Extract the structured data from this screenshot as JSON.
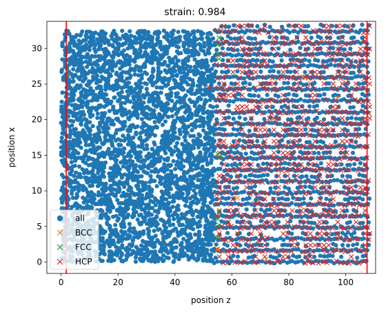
{
  "chart_data": {
    "type": "scatter",
    "title": "strain: 0.984",
    "xlabel": "position z",
    "ylabel": "position x",
    "xlim": [
      -5,
      110.5
    ],
    "ylim": [
      -1.6,
      33.8
    ],
    "xticks": [
      0,
      20,
      40,
      60,
      80,
      100
    ],
    "yticks": [
      0,
      5,
      10,
      15,
      20,
      25,
      30
    ],
    "grid": false,
    "legend_position": "lower-left",
    "vlines": [
      {
        "x": 1.8,
        "color": "#ff0000"
      },
      {
        "x": 107.5,
        "color": "#ff0000"
      }
    ],
    "series": [
      {
        "name": "all",
        "marker": "circle",
        "color": "#1f77b4",
        "regions": [
          {
            "x": [
              0,
              54
            ],
            "y": [
              0,
              32.5
            ],
            "pattern": "dense-disordered"
          },
          {
            "x": [
              54,
              108
            ],
            "y": [
              0,
              32.5
            ],
            "pattern": "lattice-layers"
          }
        ]
      },
      {
        "name": "BCC",
        "marker": "x",
        "color": "#ff7f0e",
        "points": [
          [
            72,
            0.4
          ],
          [
            55,
            1.8
          ],
          [
            97,
            23
          ],
          [
            85,
            26
          ],
          [
            62,
            9
          ]
        ]
      },
      {
        "name": "FCC",
        "marker": "x",
        "color": "#2ca02c",
        "points": [
          [
            2.5,
            26.2
          ],
          [
            55,
            30.5
          ],
          [
            55.5,
            31.5
          ],
          [
            55,
            29.2
          ],
          [
            55.5,
            28.5
          ],
          [
            55,
            15.2
          ],
          [
            56,
            14.8
          ],
          [
            55.5,
            7.0
          ],
          [
            55,
            6.0
          ],
          [
            55.5,
            5.2
          ],
          [
            55,
            3.5
          ]
        ]
      },
      {
        "name": "HCP",
        "marker": "x",
        "color": "#d62728",
        "regions": [
          {
            "x": [
              55,
              108
            ],
            "y": [
              0,
              32.5
            ],
            "pattern": "lattice-layers"
          }
        ],
        "points": [
          [
            2,
            13
          ],
          [
            52,
            24.5
          ]
        ]
      }
    ]
  }
}
